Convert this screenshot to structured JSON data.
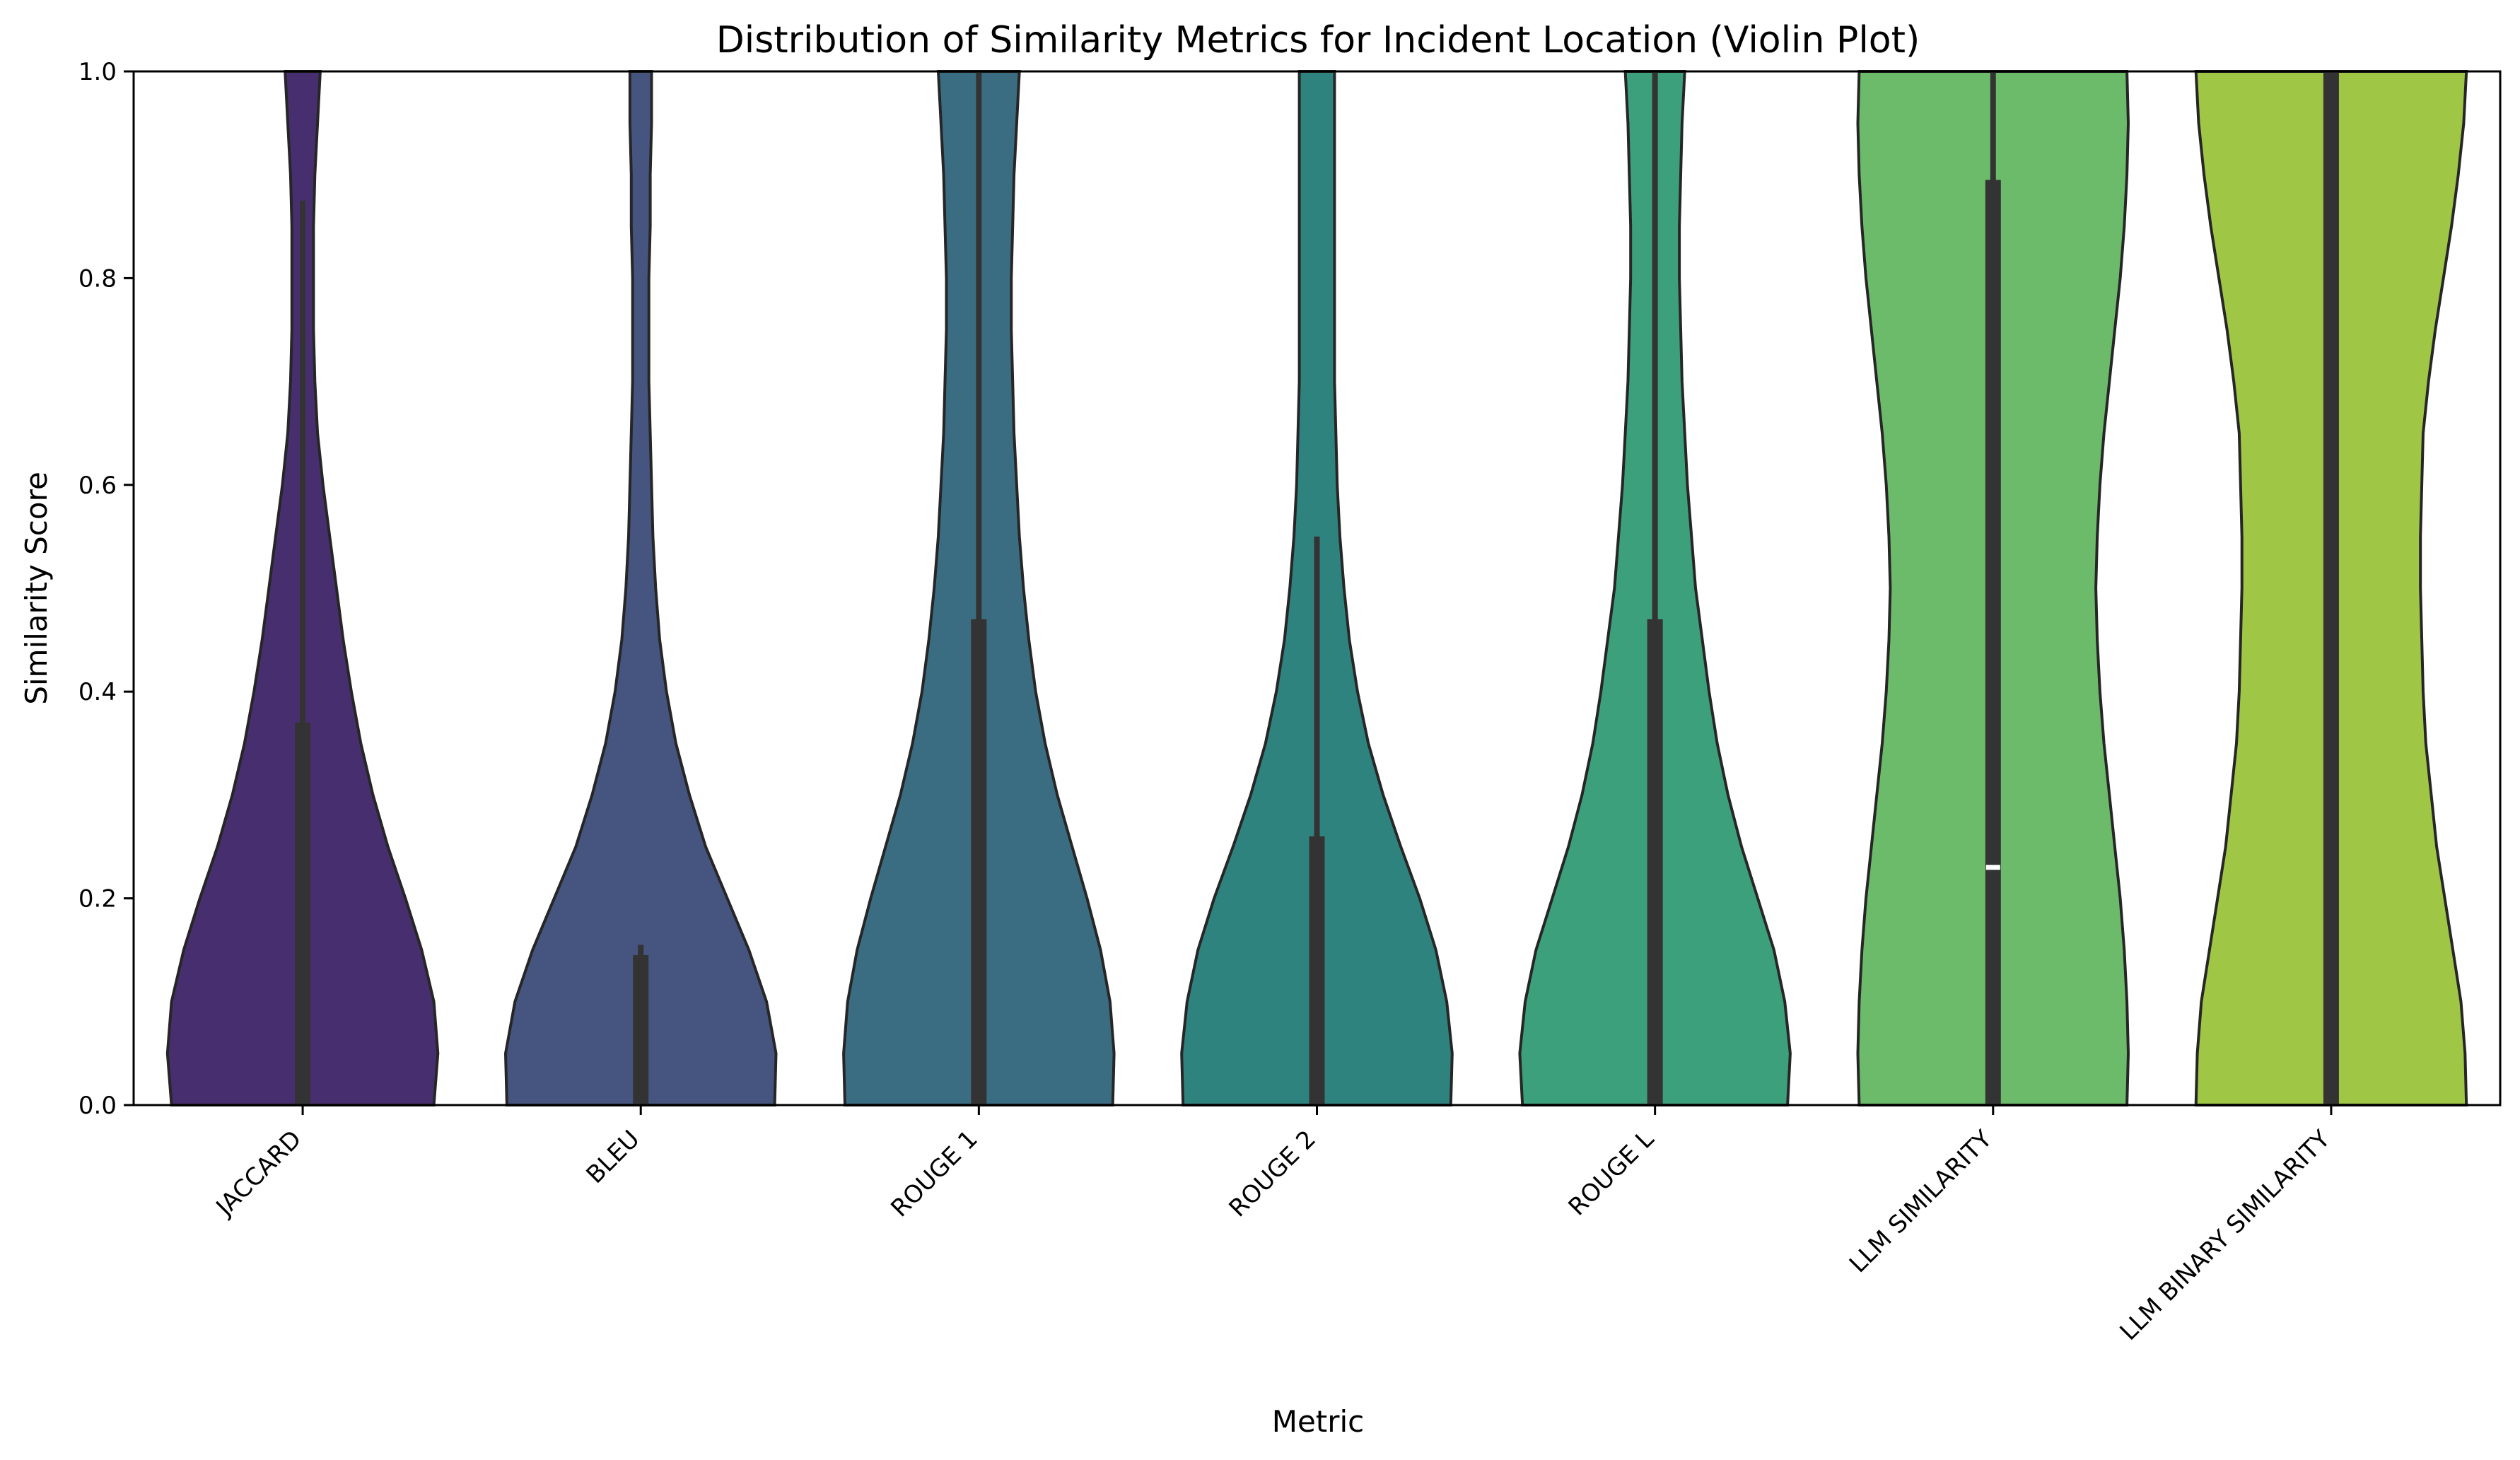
{
  "chart_data": {
    "type": "violin",
    "title": "Distribution of Similarity Metrics for Incident Location (Violin Plot)",
    "xlabel": "Metric",
    "ylabel": "Similarity Score",
    "ylim": [
      0,
      1
    ],
    "yticks": [
      "0.0",
      "0.2",
      "0.4",
      "0.6",
      "0.8",
      "1.0"
    ],
    "grid": false,
    "legend": "none",
    "categories": [
      "JACCARD",
      "BLEU",
      "ROUGE 1",
      "ROUGE 2",
      "ROUGE L",
      "LLM SIMILARITY",
      "LLM BINARY SIMILARITY"
    ],
    "series": [
      {
        "color": "#472f6f",
        "q1": 0.0,
        "median": 0.0,
        "q3": 0.37,
        "whisker_low": 0.0,
        "whisker_high": 0.875,
        "density": [
          [
            0,
            0.97
          ],
          [
            0.05,
            1.0
          ],
          [
            0.1,
            0.97
          ],
          [
            0.15,
            0.88
          ],
          [
            0.2,
            0.76
          ],
          [
            0.25,
            0.63
          ],
          [
            0.3,
            0.52
          ],
          [
            0.35,
            0.43
          ],
          [
            0.4,
            0.36
          ],
          [
            0.45,
            0.3
          ],
          [
            0.5,
            0.25
          ],
          [
            0.55,
            0.2
          ],
          [
            0.6,
            0.15
          ],
          [
            0.65,
            0.11
          ],
          [
            0.7,
            0.09
          ],
          [
            0.75,
            0.08
          ],
          [
            0.8,
            0.08
          ],
          [
            0.85,
            0.08
          ],
          [
            0.9,
            0.09
          ],
          [
            0.95,
            0.11
          ],
          [
            1.0,
            0.13
          ]
        ]
      },
      {
        "color": "#46557f",
        "q1": 0.0,
        "median": 0.0,
        "q3": 0.145,
        "whisker_low": 0.0,
        "whisker_high": 0.155,
        "density": [
          [
            0,
            0.99
          ],
          [
            0.05,
            1.0
          ],
          [
            0.1,
            0.93
          ],
          [
            0.15,
            0.8
          ],
          [
            0.2,
            0.64
          ],
          [
            0.25,
            0.48
          ],
          [
            0.3,
            0.36
          ],
          [
            0.35,
            0.26
          ],
          [
            0.4,
            0.19
          ],
          [
            0.45,
            0.14
          ],
          [
            0.5,
            0.11
          ],
          [
            0.55,
            0.09
          ],
          [
            0.6,
            0.08
          ],
          [
            0.65,
            0.07
          ],
          [
            0.7,
            0.06
          ],
          [
            0.75,
            0.06
          ],
          [
            0.8,
            0.06
          ],
          [
            0.85,
            0.07
          ],
          [
            0.9,
            0.07
          ],
          [
            0.95,
            0.08
          ],
          [
            1.0,
            0.08
          ]
        ]
      },
      {
        "color": "#3b6d82",
        "q1": 0.0,
        "median": 0.0,
        "q3": 0.47,
        "whisker_low": 0.0,
        "whisker_high": 1.0,
        "density": [
          [
            0,
            0.99
          ],
          [
            0.05,
            1.0
          ],
          [
            0.1,
            0.97
          ],
          [
            0.15,
            0.9
          ],
          [
            0.2,
            0.8
          ],
          [
            0.25,
            0.69
          ],
          [
            0.3,
            0.58
          ],
          [
            0.35,
            0.49
          ],
          [
            0.4,
            0.42
          ],
          [
            0.45,
            0.37
          ],
          [
            0.5,
            0.33
          ],
          [
            0.55,
            0.3
          ],
          [
            0.6,
            0.28
          ],
          [
            0.65,
            0.26
          ],
          [
            0.7,
            0.25
          ],
          [
            0.75,
            0.24
          ],
          [
            0.8,
            0.24
          ],
          [
            0.85,
            0.25
          ],
          [
            0.9,
            0.26
          ],
          [
            0.95,
            0.28
          ],
          [
            1.0,
            0.3
          ]
        ]
      },
      {
        "color": "#2f837f",
        "q1": 0.0,
        "median": 0.0,
        "q3": 0.26,
        "whisker_low": 0.0,
        "whisker_high": 0.55,
        "density": [
          [
            0,
            0.99
          ],
          [
            0.05,
            1.0
          ],
          [
            0.1,
            0.96
          ],
          [
            0.15,
            0.88
          ],
          [
            0.2,
            0.76
          ],
          [
            0.25,
            0.62
          ],
          [
            0.3,
            0.49
          ],
          [
            0.35,
            0.38
          ],
          [
            0.4,
            0.3
          ],
          [
            0.45,
            0.24
          ],
          [
            0.5,
            0.2
          ],
          [
            0.55,
            0.17
          ],
          [
            0.6,
            0.15
          ],
          [
            0.65,
            0.14
          ],
          [
            0.7,
            0.13
          ],
          [
            0.75,
            0.13
          ],
          [
            0.8,
            0.13
          ],
          [
            0.85,
            0.13
          ],
          [
            0.9,
            0.13
          ],
          [
            0.95,
            0.13
          ],
          [
            1.0,
            0.13
          ]
        ]
      },
      {
        "color": "#3da07c",
        "q1": 0.0,
        "median": 0.0,
        "q3": 0.47,
        "whisker_low": 0.0,
        "whisker_high": 1.0,
        "density": [
          [
            0,
            0.98
          ],
          [
            0.05,
            1.0
          ],
          [
            0.1,
            0.96
          ],
          [
            0.15,
            0.88
          ],
          [
            0.2,
            0.76
          ],
          [
            0.25,
            0.64
          ],
          [
            0.3,
            0.54
          ],
          [
            0.35,
            0.46
          ],
          [
            0.4,
            0.4
          ],
          [
            0.45,
            0.35
          ],
          [
            0.5,
            0.3
          ],
          [
            0.55,
            0.27
          ],
          [
            0.6,
            0.24
          ],
          [
            0.65,
            0.22
          ],
          [
            0.7,
            0.2
          ],
          [
            0.75,
            0.19
          ],
          [
            0.8,
            0.18
          ],
          [
            0.85,
            0.18
          ],
          [
            0.9,
            0.19
          ],
          [
            0.95,
            0.2
          ],
          [
            1.0,
            0.22
          ]
        ]
      },
      {
        "color": "#6cbb6a",
        "q1": 0.0,
        "median": 0.23,
        "q3": 0.895,
        "whisker_low": 0.0,
        "whisker_high": 1.0,
        "density": [
          [
            0,
            0.99
          ],
          [
            0.05,
            1.0
          ],
          [
            0.1,
            0.99
          ],
          [
            0.15,
            0.97
          ],
          [
            0.2,
            0.94
          ],
          [
            0.25,
            0.9
          ],
          [
            0.3,
            0.86
          ],
          [
            0.35,
            0.82
          ],
          [
            0.4,
            0.79
          ],
          [
            0.45,
            0.77
          ],
          [
            0.5,
            0.76
          ],
          [
            0.55,
            0.77
          ],
          [
            0.6,
            0.79
          ],
          [
            0.65,
            0.82
          ],
          [
            0.7,
            0.86
          ],
          [
            0.75,
            0.9
          ],
          [
            0.8,
            0.94
          ],
          [
            0.85,
            0.97
          ],
          [
            0.9,
            0.99
          ],
          [
            0.95,
            1.0
          ],
          [
            1.0,
            0.99
          ]
        ]
      },
      {
        "color": "#a0c646",
        "q1": 0.0,
        "median": 1.0,
        "q3": 1.0,
        "whisker_low": 0.0,
        "whisker_high": 1.0,
        "density": [
          [
            0,
            1.0
          ],
          [
            0.05,
            0.99
          ],
          [
            0.1,
            0.96
          ],
          [
            0.15,
            0.9
          ],
          [
            0.2,
            0.84
          ],
          [
            0.25,
            0.78
          ],
          [
            0.3,
            0.74
          ],
          [
            0.35,
            0.7
          ],
          [
            0.4,
            0.68
          ],
          [
            0.45,
            0.67
          ],
          [
            0.5,
            0.66
          ],
          [
            0.55,
            0.66
          ],
          [
            0.6,
            0.67
          ],
          [
            0.65,
            0.68
          ],
          [
            0.7,
            0.72
          ],
          [
            0.75,
            0.77
          ],
          [
            0.8,
            0.83
          ],
          [
            0.85,
            0.89
          ],
          [
            0.9,
            0.94
          ],
          [
            0.95,
            0.98
          ],
          [
            1.0,
            1.0
          ]
        ]
      }
    ]
  }
}
